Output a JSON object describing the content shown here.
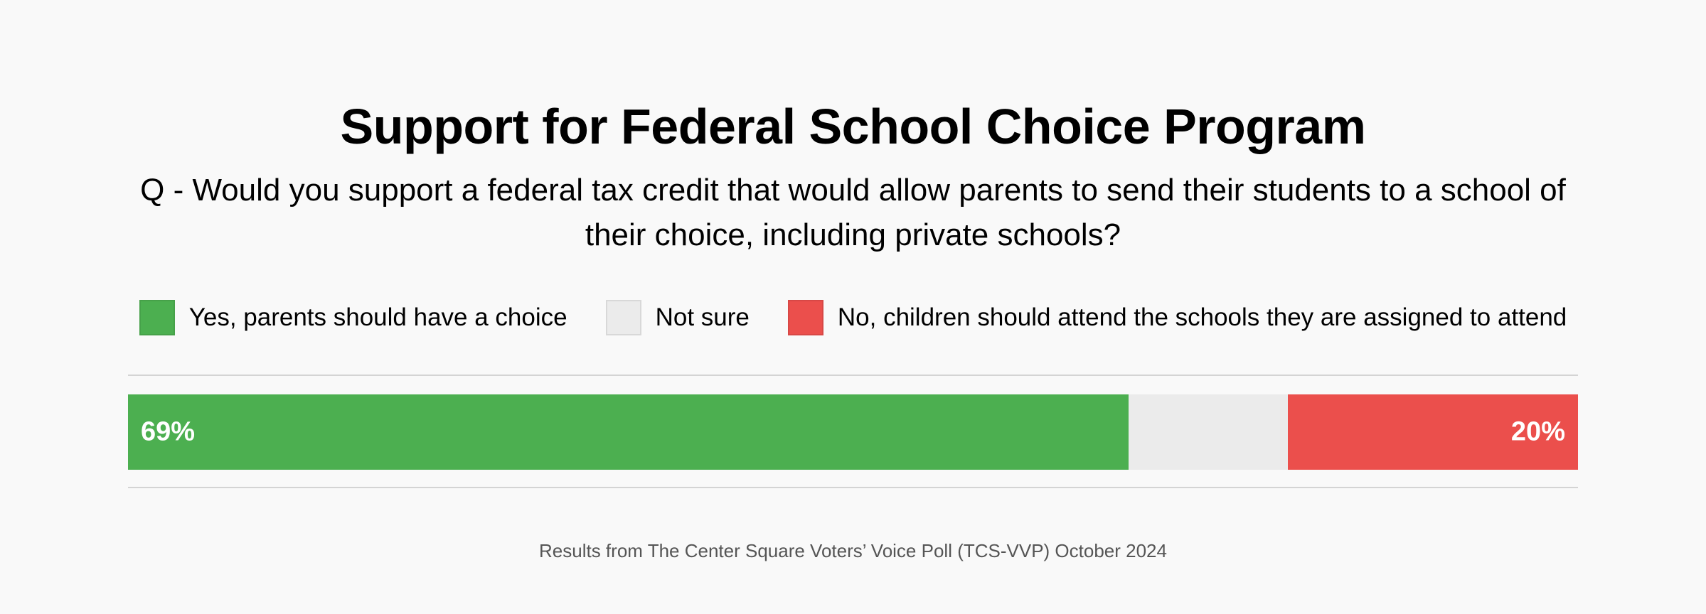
{
  "chart_data": {
    "type": "bar",
    "orientation": "horizontal-stacked",
    "title": "Support for Federal School Choice Program",
    "subtitle": "Q - Would you support a federal tax credit that would allow parents to send their students to a school of their choice, including private schools?",
    "legend_placement": "top",
    "series": [
      {
        "name": "Yes, parents should have a choice",
        "value": 69,
        "label": "69%",
        "color": "#4caf50"
      },
      {
        "name": "Not sure",
        "value": 11,
        "label": "",
        "color": "#ebebeb"
      },
      {
        "name": "No, children should attend the schools they are assigned to attend",
        "value": 20,
        "label": "20%",
        "color": "#eb4f4c"
      }
    ],
    "xlim": [
      0,
      100
    ],
    "footer": "Results from The Center Square Voters’ Voice Poll (TCS-VVP) October 2024"
  }
}
